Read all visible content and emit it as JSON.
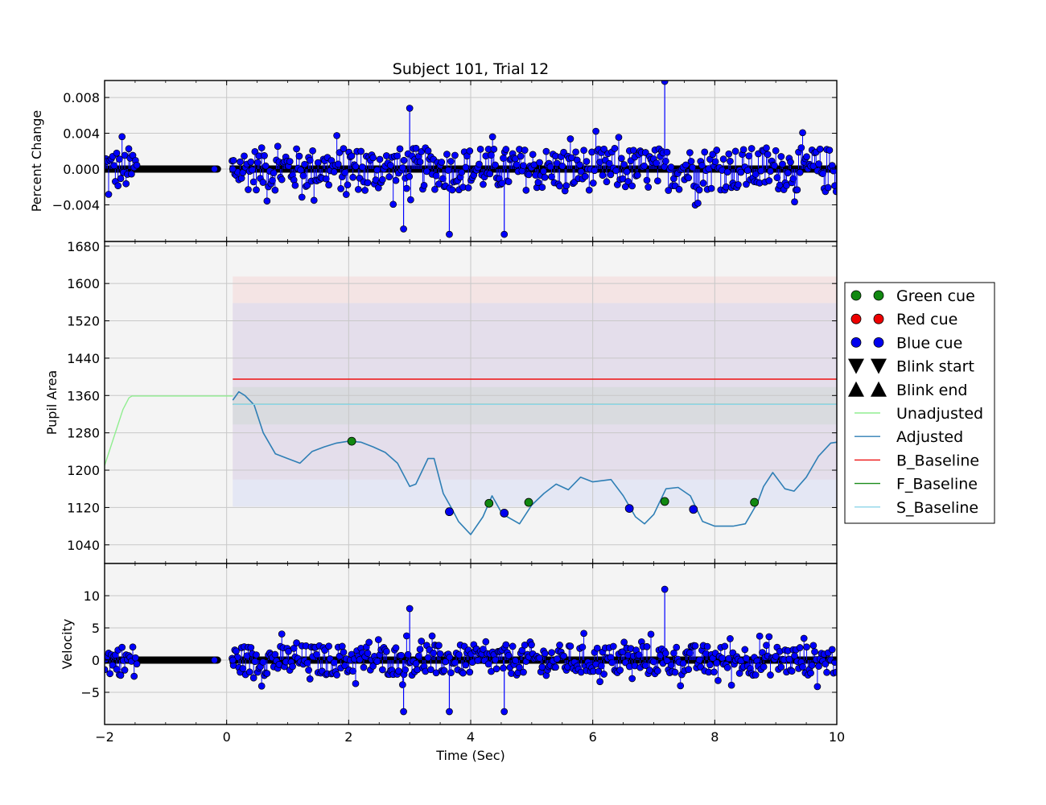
{
  "chart_data": {
    "type": "line",
    "title": "Subject 101, Trial 12",
    "xlabel": "Time (Sec)",
    "xlim": [
      -2,
      10
    ],
    "xticks": [
      "−2",
      "0",
      "2",
      "4",
      "6",
      "8",
      "10"
    ],
    "xtick_values": [
      -2,
      0,
      2,
      4,
      6,
      8,
      10
    ],
    "grid": true,
    "legend_placement": "right, outside the axes",
    "panels": [
      {
        "id": "percent_change",
        "ylabel": "Percent Change",
        "ylim": [
          -0.0081,
          0.0099
        ],
        "yticks": [
          "−0.004",
          "0.000",
          "0.004",
          "0.008"
        ],
        "ytick_values": [
          -0.004,
          0.0,
          0.004,
          0.008
        ],
        "series_color": "#0000ff",
        "marker_color": "#0000ff",
        "approx_range": [
          -0.0073,
          0.0098
        ],
        "gaps": [
          [
            -1.45,
            -0.15
          ]
        ],
        "notes": "stem-style dense noisy samples around 0"
      },
      {
        "id": "pupil_area",
        "ylabel": "Pupil Area",
        "ylim": [
          1000,
          1690
        ],
        "yticks": [
          "1040",
          "1120",
          "1200",
          "1280",
          "1360",
          "1440",
          "1520",
          "1600",
          "1680"
        ],
        "ytick_values": [
          1040,
          1120,
          1200,
          1280,
          1360,
          1440,
          1520,
          1600,
          1680
        ],
        "bands": [
          {
            "x": [
              0.1,
              10
            ],
            "y": [
              1180,
              1615
            ],
            "color": "#f5d0d0"
          },
          {
            "x": [
              0.1,
              10
            ],
            "y": [
              1122,
              1558
            ],
            "color": "#d0d8f5"
          },
          {
            "x": [
              0.1,
              10
            ],
            "y": [
              1298,
              1378
            ],
            "color": "#cdd8d0"
          }
        ],
        "series": [
          {
            "name": "Unadjusted",
            "color": "#90ee90",
            "x": [
              -2.0,
              -1.9,
              -1.8,
              -1.7,
              -1.6,
              -1.55,
              -1.0,
              0.1
            ],
            "y": [
              1210,
              1250,
              1290,
              1330,
              1355,
              1359,
              1359,
              1359
            ]
          },
          {
            "name": "Adjusted",
            "color": "#2f7fb5",
            "x": [
              0.1,
              0.2,
              0.3,
              0.45,
              0.6,
              0.8,
              1.0,
              1.2,
              1.4,
              1.6,
              1.8,
              2.0,
              2.2,
              2.4,
              2.6,
              2.8,
              3.0,
              3.1,
              3.3,
              3.4,
              3.55,
              3.7,
              3.8,
              4.0,
              4.2,
              4.35,
              4.5,
              4.6,
              4.8,
              5.0,
              5.2,
              5.4,
              5.6,
              5.8,
              6.0,
              6.3,
              6.5,
              6.7,
              6.85,
              7.0,
              7.2,
              7.4,
              7.6,
              7.8,
              8.0,
              8.3,
              8.5,
              8.7,
              8.8,
              8.95,
              9.15,
              9.3,
              9.5,
              9.7,
              9.9,
              10.0
            ],
            "y": [
              1350,
              1368,
              1360,
              1340,
              1280,
              1235,
              1225,
              1215,
              1240,
              1250,
              1258,
              1262,
              1260,
              1250,
              1238,
              1215,
              1165,
              1170,
              1225,
              1225,
              1150,
              1115,
              1090,
              1062,
              1100,
              1145,
              1110,
              1100,
              1085,
              1125,
              1150,
              1170,
              1158,
              1185,
              1175,
              1180,
              1145,
              1100,
              1085,
              1105,
              1160,
              1163,
              1145,
              1090,
              1080,
              1080,
              1085,
              1130,
              1165,
              1195,
              1160,
              1155,
              1185,
              1230,
              1258,
              1260
            ]
          },
          {
            "name": "B_Baseline",
            "color": "#ee1111",
            "x": [
              0.1,
              10
            ],
            "y": [
              1395,
              1395
            ]
          },
          {
            "name": "F_Baseline",
            "color": "#1a8c1a",
            "x": [
              0.1,
              10
            ],
            "y": [
              1341,
              1341
            ]
          },
          {
            "name": "S_Baseline",
            "color": "#8ed5e8",
            "x": [
              0.1,
              10
            ],
            "y": [
              1341,
              1341
            ]
          }
        ],
        "markers": [
          {
            "cue": "Green cue",
            "x": 2.05,
            "y": 1262
          },
          {
            "cue": "Blue cue",
            "x": 3.65,
            "y": 1111
          },
          {
            "cue": "Green cue",
            "x": 4.3,
            "y": 1129
          },
          {
            "cue": "Blue cue",
            "x": 4.55,
            "y": 1108
          },
          {
            "cue": "Green cue",
            "x": 4.95,
            "y": 1131
          },
          {
            "cue": "Blue cue",
            "x": 6.6,
            "y": 1118
          },
          {
            "cue": "Green cue",
            "x": 7.18,
            "y": 1133
          },
          {
            "cue": "Blue cue",
            "x": 7.65,
            "y": 1116
          },
          {
            "cue": "Green cue",
            "x": 8.65,
            "y": 1131
          }
        ]
      },
      {
        "id": "velocity",
        "ylabel": "Velocity",
        "ylim": [
          -10,
          15
        ],
        "yticks": [
          "−5",
          "0",
          "5",
          "10"
        ],
        "ytick_values": [
          -5,
          0,
          5,
          10
        ],
        "series_color": "#0000ff",
        "marker_color": "#0000ff",
        "approx_range": [
          -8,
          11
        ],
        "gaps": [
          [
            -1.45,
            -0.15
          ]
        ],
        "notes": "stem-style dense noisy samples around 0"
      }
    ],
    "legend": [
      {
        "label": "Green cue",
        "kind": "circle",
        "color": "#118811"
      },
      {
        "label": "Red cue",
        "kind": "circle",
        "color": "#ee0000"
      },
      {
        "label": "Blue cue",
        "kind": "circle",
        "color": "#0000ee"
      },
      {
        "label": "Blink start",
        "kind": "triangle-down",
        "color": "#000000"
      },
      {
        "label": "Blink end",
        "kind": "triangle-up",
        "color": "#000000"
      },
      {
        "label": "Unadjusted",
        "kind": "line",
        "color": "#90ee90"
      },
      {
        "label": "Adjusted",
        "kind": "line",
        "color": "#2f7fb5"
      },
      {
        "label": "B_Baseline",
        "kind": "line",
        "color": "#ee1111"
      },
      {
        "label": "F_Baseline",
        "kind": "line",
        "color": "#1a8c1a"
      },
      {
        "label": "S_Baseline",
        "kind": "line",
        "color": "#8ed5e8"
      }
    ]
  }
}
